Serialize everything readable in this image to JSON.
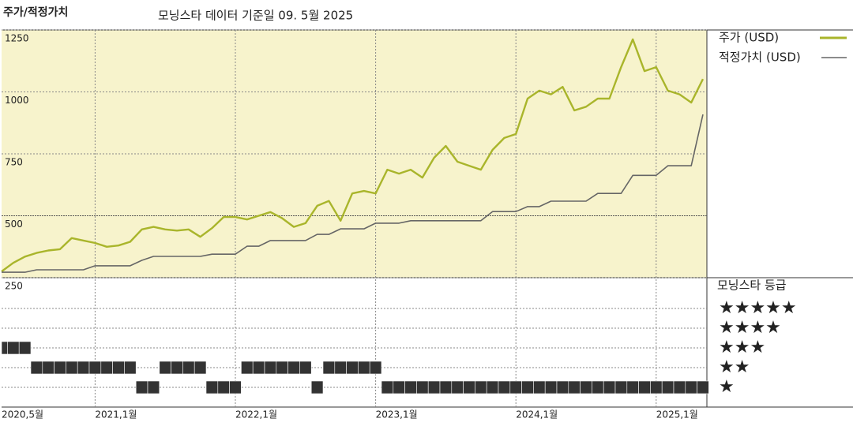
{
  "chart_data": {
    "type": "line",
    "title": "주가/적정가치",
    "subtitle": "모닝스타 데이터 기준일 09. 5월 2025",
    "x": [
      "2020-05",
      "2020-06",
      "2020-07",
      "2020-08",
      "2020-09",
      "2020-10",
      "2020-11",
      "2020-12",
      "2021-01",
      "2021-02",
      "2021-03",
      "2021-04",
      "2021-05",
      "2021-06",
      "2021-07",
      "2021-08",
      "2021-09",
      "2021-10",
      "2021-11",
      "2021-12",
      "2022-01",
      "2022-02",
      "2022-03",
      "2022-04",
      "2022-05",
      "2022-06",
      "2022-07",
      "2022-08",
      "2022-09",
      "2022-10",
      "2022-11",
      "2022-12",
      "2023-01",
      "2023-02",
      "2023-03",
      "2023-04",
      "2023-05",
      "2023-06",
      "2023-07",
      "2023-08",
      "2023-09",
      "2023-10",
      "2023-11",
      "2023-12",
      "2024-01",
      "2024-02",
      "2024-03",
      "2024-04",
      "2024-05",
      "2024-06",
      "2024-07",
      "2024-08",
      "2024-09",
      "2024-10",
      "2024-11",
      "2024-12",
      "2025-01",
      "2025-02",
      "2025-03",
      "2025-04",
      "2025-05"
    ],
    "xticks": [
      {
        "value": "2020-05",
        "label": "2020,5월"
      },
      {
        "value": "2021-01",
        "label": "2021,1월"
      },
      {
        "value": "2022-01",
        "label": "2022,1월"
      },
      {
        "value": "2023-01",
        "label": "2023,1월"
      },
      {
        "value": "2024-01",
        "label": "2024,1월"
      },
      {
        "value": "2025-01",
        "label": "2025,1월"
      }
    ],
    "ylim": [
      250,
      1250
    ],
    "yticks": [
      250,
      500,
      750,
      1000,
      1250
    ],
    "grid": true,
    "series": [
      {
        "name": "주가 (USD)",
        "color": "#a9b52b",
        "values": [
          275,
          310,
          335,
          350,
          360,
          365,
          410,
          400,
          390,
          375,
          380,
          395,
          445,
          455,
          445,
          440,
          445,
          415,
          450,
          495,
          495,
          485,
          500,
          515,
          490,
          455,
          470,
          540,
          560,
          480,
          590,
          600,
          590,
          686,
          670,
          686,
          654,
          734,
          782,
          718,
          702,
          686,
          766,
          814,
          830,
          973,
          1005,
          990,
          1020,
          925,
          940,
          973,
          973,
          1100,
          1212,
          1084,
          1100,
          1005,
          990,
          957,
          1052
        ]
      },
      {
        "name": "적정가치 (USD)",
        "color": "#666666",
        "values": [
          272,
          272,
          272,
          282,
          282,
          282,
          282,
          282,
          298,
          298,
          298,
          298,
          320,
          336,
          336,
          336,
          336,
          336,
          345,
          345,
          345,
          377,
          377,
          400,
          400,
          400,
          400,
          425,
          425,
          447,
          447,
          447,
          470,
          470,
          470,
          480,
          480,
          480,
          480,
          480,
          480,
          480,
          517,
          517,
          517,
          537,
          537,
          559,
          559,
          559,
          559,
          590,
          590,
          590,
          663,
          663,
          663,
          702,
          702,
          702,
          909
        ]
      }
    ],
    "rating": {
      "title": "모닝스타 등급",
      "levels": [
        {
          "value": 5,
          "label": "★★★★★"
        },
        {
          "value": 4,
          "label": "★★★★"
        },
        {
          "value": 3,
          "label": "★★★"
        },
        {
          "value": 2,
          "label": "★★"
        },
        {
          "value": 1,
          "label": "★"
        }
      ],
      "values": [
        3,
        3,
        3,
        2,
        2,
        2,
        2,
        2,
        2,
        2,
        2,
        2,
        1,
        1,
        2,
        2,
        2,
        2,
        1,
        1,
        1,
        2,
        2,
        2,
        2,
        2,
        2,
        1,
        2,
        2,
        2,
        2,
        2,
        1,
        1,
        1,
        1,
        1,
        1,
        1,
        1,
        1,
        1,
        1,
        1,
        1,
        1,
        1,
        1,
        1,
        1,
        1,
        1,
        1,
        1,
        1,
        1,
        1,
        1,
        1,
        1
      ]
    }
  }
}
